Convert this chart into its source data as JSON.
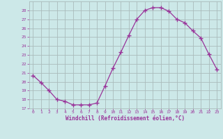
{
  "x": [
    0,
    1,
    2,
    3,
    4,
    5,
    6,
    7,
    8,
    9,
    10,
    11,
    12,
    13,
    14,
    15,
    16,
    17,
    18,
    19,
    20,
    21,
    22,
    23
  ],
  "y": [
    20.7,
    19.9,
    19.0,
    18.0,
    17.8,
    17.4,
    17.4,
    17.4,
    17.6,
    19.5,
    21.5,
    23.3,
    25.2,
    27.0,
    28.0,
    28.3,
    28.3,
    27.9,
    27.0,
    26.6,
    25.7,
    24.9,
    23.1,
    21.4
  ],
  "line_color": "#993399",
  "marker_color": "#993399",
  "bg_color": "#cce8e8",
  "grid_color": "#aabbbb",
  "axis_label_color": "#993399",
  "tick_color": "#993399",
  "xlabel": "Windchill (Refroidissement éolien,°C)",
  "ylim": [
    17,
    29
  ],
  "xlim": [
    -0.5,
    23.5
  ],
  "yticks": [
    17,
    18,
    19,
    20,
    21,
    22,
    23,
    24,
    25,
    26,
    27,
    28
  ],
  "xticks": [
    0,
    1,
    2,
    3,
    4,
    5,
    6,
    7,
    8,
    9,
    10,
    11,
    12,
    13,
    14,
    15,
    16,
    17,
    18,
    19,
    20,
    21,
    22,
    23
  ]
}
